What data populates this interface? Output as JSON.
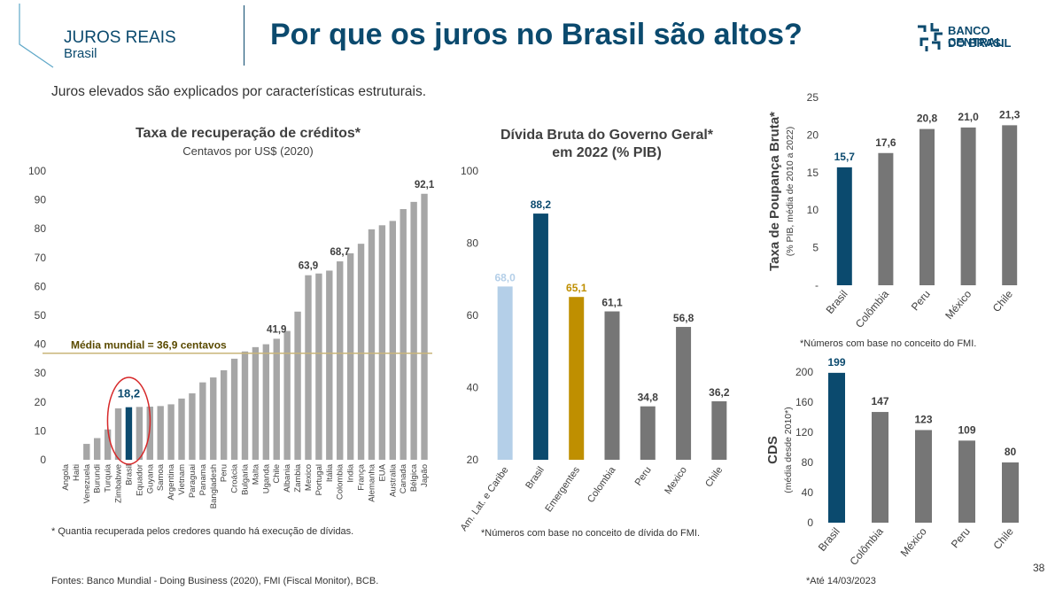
{
  "header": {
    "section": "JUROS REAIS",
    "section_sub": "Brasil",
    "title": "Por que os juros no Brasil são altos?",
    "logo_line1": "BANCO CENTRAL",
    "logo_line2": "DO BRASIL"
  },
  "subtitle": "Juros elevados são explicados por características estruturais.",
  "source": "Fontes: Banco Mundial - Doing Business (2020), FMI (Fiscal Monitor), BCB.",
  "page_number": "38",
  "colors": {
    "brand": "#0b4a6e",
    "bar_gray": "#a6a6a6",
    "bar_dark_gray": "#767676",
    "highlight": "#0b4a6e",
    "light_blue": "#b4cfe8",
    "gold": "#bf8f00",
    "reference_line": "#c9b57a",
    "circle": "#d62728"
  },
  "charts": [
    {
      "title": "Taxa de recuperação de créditos*",
      "subtitle": "Centavos por US$ (2020)",
      "note": "* Quantia recuperada pelos credores quando há execução de dívidas."
    },
    {
      "title_line1": "Dívida Bruta do Governo Geral*",
      "title_line2": "em 2022 (% PIB)",
      "note": "*Números com base no conceito de dívida do FMI."
    },
    {
      "ylabel": "Taxa de Poupança Bruta*",
      "ylabel_sub": "(% PIB, média de 2010 a 2022)",
      "note": "*Números com base no conceito do FMI."
    },
    {
      "ylabel": "CDS",
      "ylabel_sub": "(média desde 2010*)",
      "note": "*Até 14/03/2023"
    }
  ],
  "chart_data": [
    {
      "type": "bar",
      "title": "Taxa de recuperação de créditos*",
      "subtitle": "Centavos por US$ (2020)",
      "categories": [
        "Angola",
        "Haiti",
        "Venezuela",
        "Burundi",
        "Turquia",
        "Zimbabwe",
        "Brasil",
        "Equador",
        "Guyana",
        "Samoa",
        "Argentina",
        "Vietnam",
        "Paraguai",
        "Panama",
        "Bangladesh",
        "Peru",
        "Croácia",
        "Bulgaria",
        "Malta",
        "Uganda",
        "Chile",
        "Albania",
        "Zambia",
        "Mexico",
        "Portugal",
        "Itália",
        "Colombia",
        "India",
        "França",
        "Alemanha",
        "EUA",
        "Australia",
        "Canada",
        "Bélgica",
        "Japão"
      ],
      "values": [
        0,
        0,
        5.5,
        7.5,
        10.5,
        17.8,
        18.2,
        18.3,
        18.4,
        18.6,
        19.2,
        21.2,
        23.0,
        26.8,
        28.5,
        31.0,
        35.0,
        37.5,
        39.0,
        40.0,
        41.9,
        44.6,
        51.3,
        63.9,
        64.5,
        65.5,
        68.7,
        71.5,
        74.8,
        79.8,
        81.2,
        82.7,
        86.8,
        89.3,
        92.1
      ],
      "highlight": "Brasil",
      "data_labels": [
        {
          "category": "Brasil",
          "label": "18,2"
        },
        {
          "category": "Chile",
          "label": "41,9"
        },
        {
          "category": "Mexico",
          "label": "63,9"
        },
        {
          "category": "Colombia",
          "label": "68,7"
        },
        {
          "category": "Japão",
          "label": "92,1"
        }
      ],
      "reference_line": {
        "value": 36.9,
        "label": "Média mundial = 36,9 centavos"
      },
      "ylim": [
        0,
        100
      ],
      "yticks": [
        0,
        10,
        20,
        30,
        40,
        50,
        60,
        70,
        80,
        90,
        100
      ],
      "grid": false
    },
    {
      "type": "bar",
      "title": "Dívida Bruta do Governo Geral* em 2022 (% PIB)",
      "categories": [
        "Am. Lat. e Caribe",
        "Brasil",
        "Emergentes",
        "Colombia",
        "Peru",
        "Mexico",
        "Chile"
      ],
      "values": [
        68.0,
        88.2,
        65.1,
        61.1,
        34.8,
        56.8,
        36.2
      ],
      "labels": [
        "68,0",
        "88,2",
        "65,1",
        "61,1",
        "34,8",
        "56,8",
        "36,2"
      ],
      "bar_colors": [
        "#b4cfe8",
        "#0b4a6e",
        "#bf8f00",
        "#767676",
        "#767676",
        "#767676",
        "#767676"
      ],
      "ylim": [
        20,
        100
      ],
      "yticks": [
        20,
        40,
        60,
        80,
        100
      ],
      "grid": false
    },
    {
      "type": "bar",
      "ylabel": "Taxa de Poupança Bruta* (% PIB, média de 2010 a 2022)",
      "categories": [
        "Brasil",
        "Colômbia",
        "Peru",
        "México",
        "Chile"
      ],
      "values": [
        15.7,
        17.6,
        20.8,
        21.0,
        21.3
      ],
      "labels": [
        "15,7",
        "17,6",
        "20,8",
        "21,0",
        "21,3"
      ],
      "highlight": "Brasil",
      "ylim": [
        0,
        25
      ],
      "yticks": [
        0,
        5,
        10,
        15,
        20,
        25
      ],
      "ytick_labels": [
        "-",
        "5",
        "10",
        "15",
        "20",
        "25"
      ],
      "grid": false
    },
    {
      "type": "bar",
      "ylabel": "CDS (média desde 2010*)",
      "categories": [
        "Brasil",
        "Colômbia",
        "México",
        "Peru",
        "Chile"
      ],
      "values": [
        199,
        147,
        123,
        109,
        80
      ],
      "labels": [
        "199",
        "147",
        "123",
        "109",
        "80"
      ],
      "highlight": "Brasil",
      "ylim": [
        0,
        200
      ],
      "yticks": [
        0,
        40,
        80,
        120,
        160,
        200
      ],
      "grid": false
    }
  ]
}
